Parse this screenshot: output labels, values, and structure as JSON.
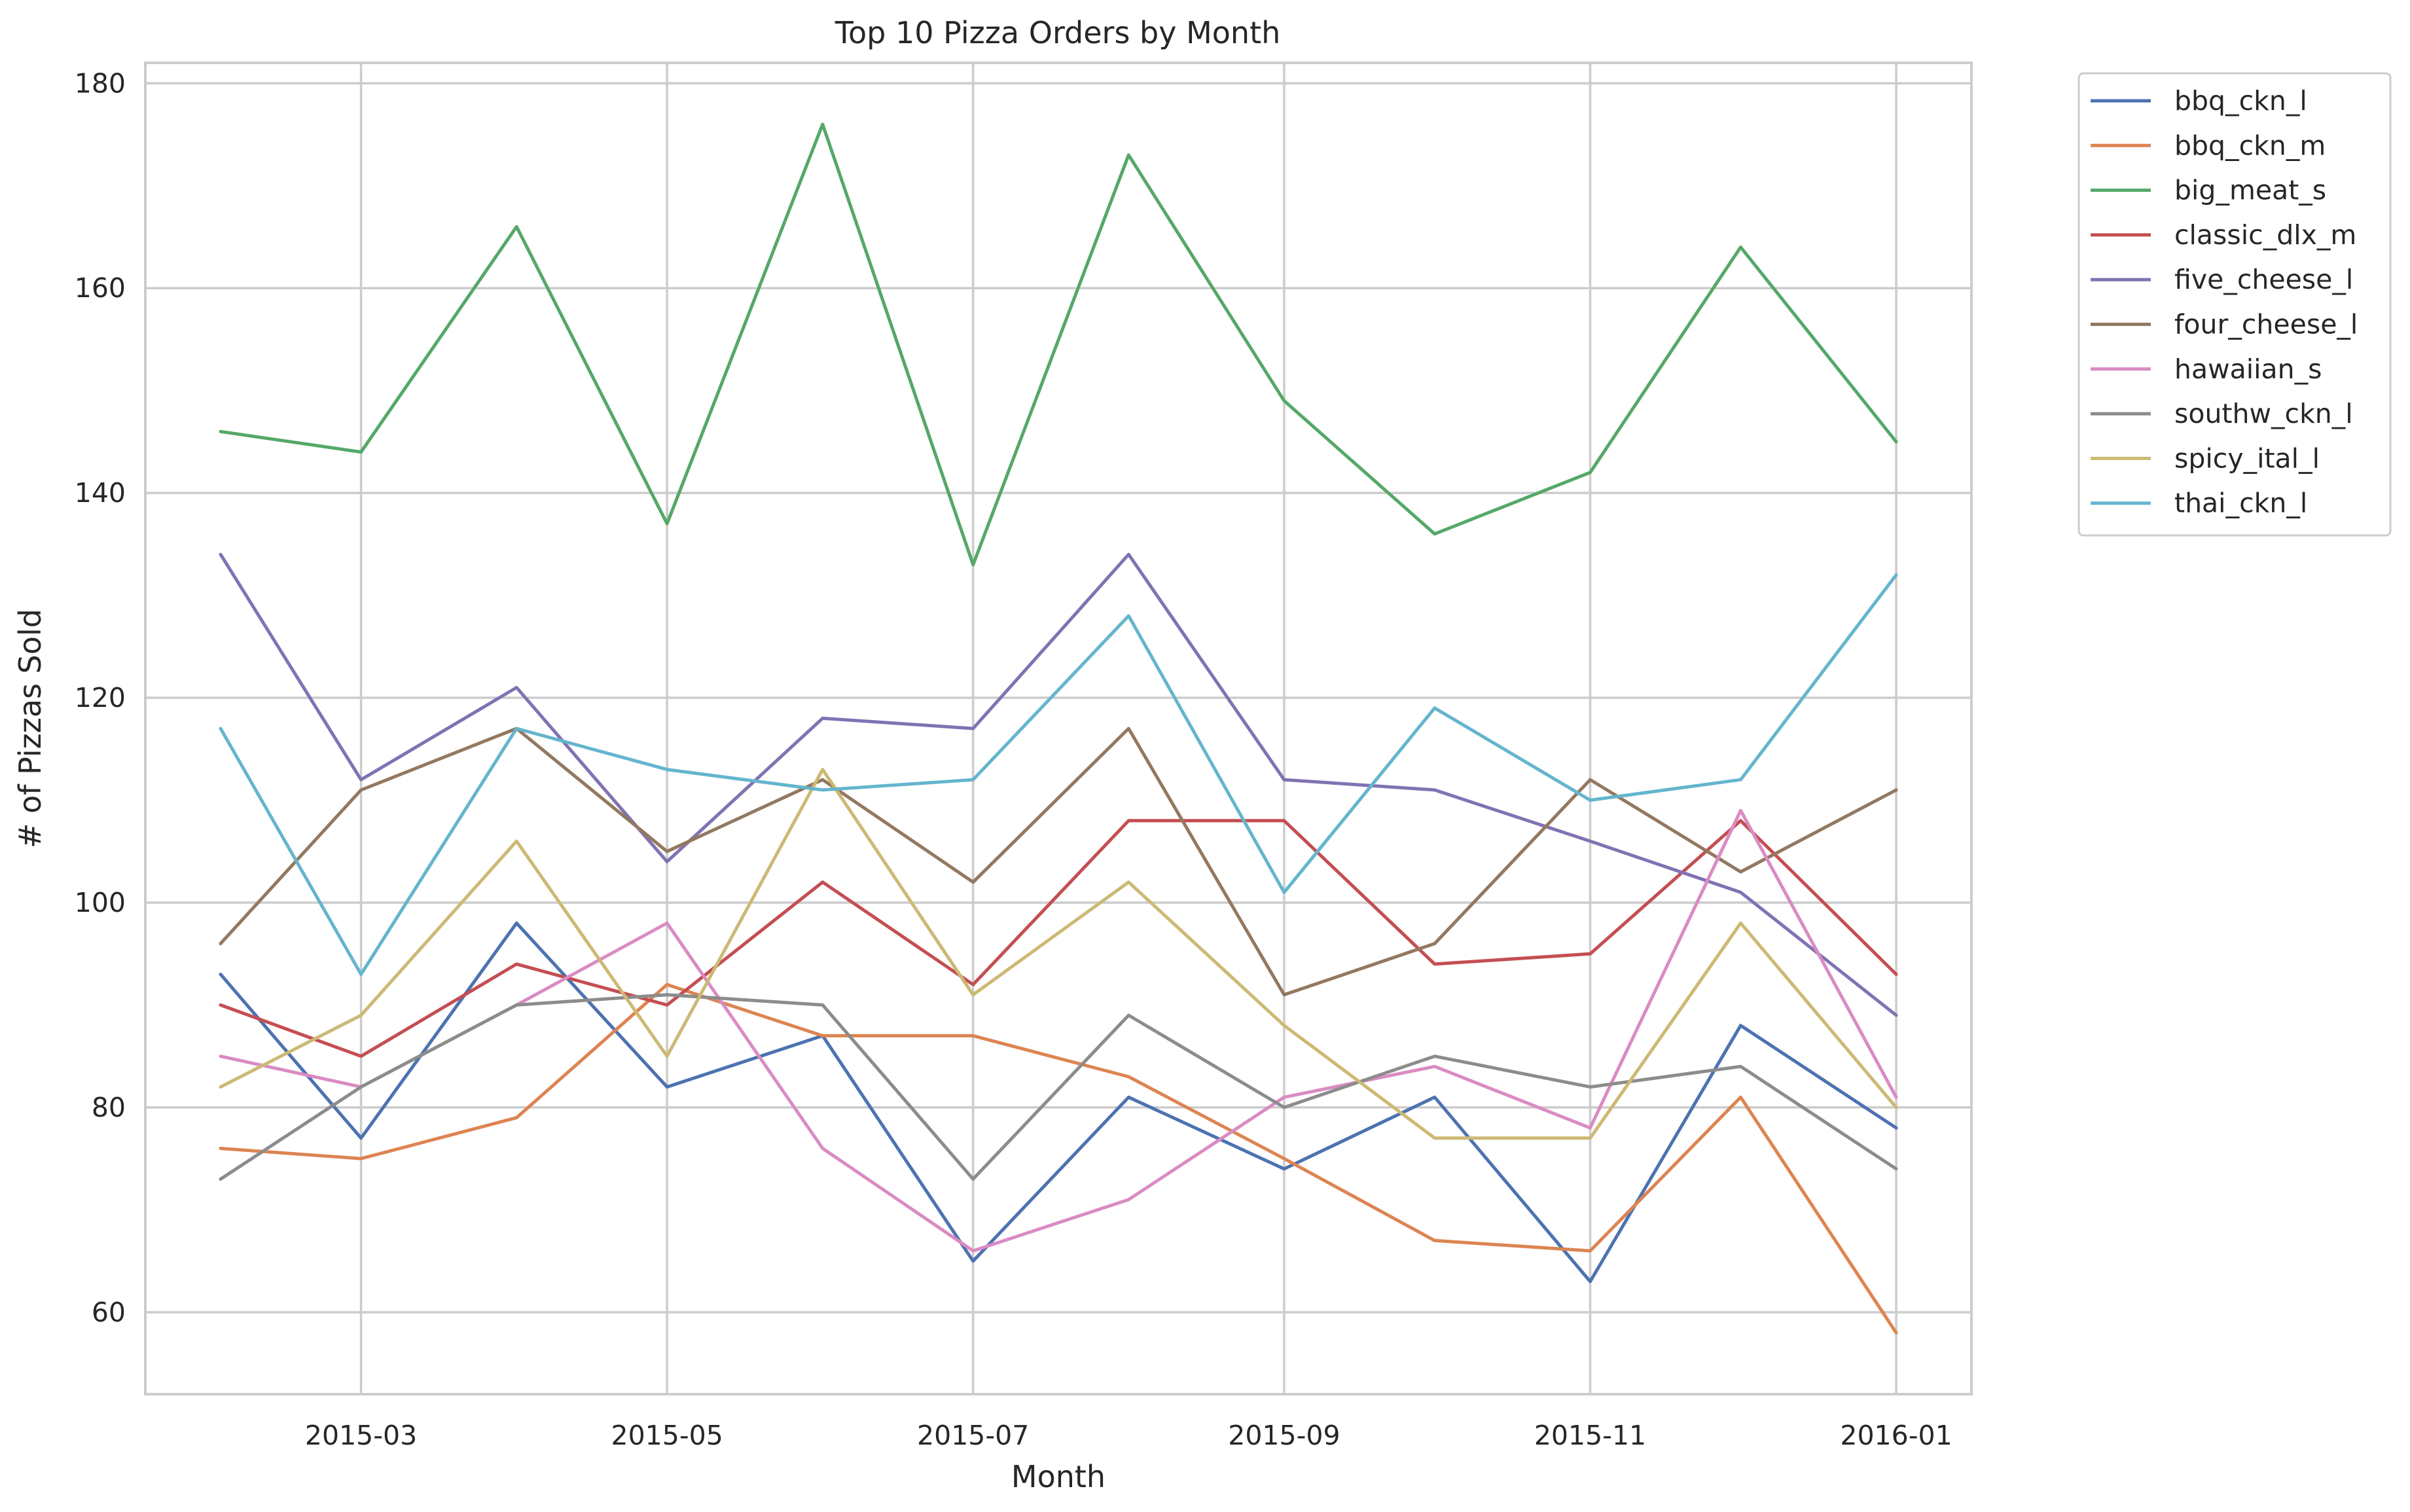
{
  "chart_data": {
    "type": "line",
    "title": "Top 10 Pizza Orders by Month",
    "xlabel": "Month",
    "ylabel": "# of Pizzas Sold",
    "x": [
      "2015-02-01",
      "2015-03-01",
      "2015-04-01",
      "2015-05-01",
      "2015-06-01",
      "2015-07-01",
      "2015-08-01",
      "2015-09-01",
      "2015-10-01",
      "2015-11-01",
      "2015-12-01",
      "2016-01-01"
    ],
    "xticks": [
      "2015-03",
      "2015-05",
      "2015-07",
      "2015-09",
      "2015-11",
      "2016-01"
    ],
    "xtick_dates": [
      "2015-03-01",
      "2015-05-01",
      "2015-07-01",
      "2015-09-01",
      "2015-11-01",
      "2016-01-01"
    ],
    "xlim": [
      "2015-01-17",
      "2016-01-16"
    ],
    "yticks": [
      60,
      80,
      100,
      120,
      140,
      160,
      180
    ],
    "ylim": [
      52,
      182
    ],
    "grid": true,
    "legend_position": "outside-top-right",
    "series": [
      {
        "name": "bbq_ckn_l",
        "color": "#4c72b0",
        "values": [
          93,
          77,
          98,
          82,
          87,
          65,
          81,
          74,
          81,
          63,
          88,
          78
        ]
      },
      {
        "name": "bbq_ckn_m",
        "color": "#dd8452",
        "values": [
          76,
          75,
          79,
          92,
          87,
          87,
          83,
          75,
          67,
          66,
          81,
          58
        ]
      },
      {
        "name": "big_meat_s",
        "color": "#55a868",
        "values": [
          146,
          144,
          166,
          137,
          176,
          133,
          173,
          149,
          136,
          142,
          164,
          145
        ]
      },
      {
        "name": "classic_dlx_m",
        "color": "#c44e52",
        "values": [
          90,
          85,
          94,
          90,
          102,
          92,
          108,
          108,
          94,
          95,
          108,
          93
        ]
      },
      {
        "name": "five_cheese_l",
        "color": "#8172b3",
        "values": [
          134,
          112,
          121,
          104,
          118,
          117,
          134,
          112,
          111,
          106,
          101,
          89
        ]
      },
      {
        "name": "four_cheese_l",
        "color": "#937860",
        "values": [
          96,
          111,
          117,
          105,
          112,
          102,
          117,
          91,
          96,
          112,
          103,
          111
        ]
      },
      {
        "name": "hawaiian_s",
        "color": "#da8bc3",
        "values": [
          85,
          82,
          90,
          98,
          76,
          66,
          71,
          81,
          84,
          78,
          109,
          81
        ]
      },
      {
        "name": "southw_ckn_l",
        "color": "#8c8c8c",
        "values": [
          73,
          82,
          90,
          91,
          90,
          73,
          89,
          80,
          85,
          82,
          84,
          74
        ]
      },
      {
        "name": "spicy_ital_l",
        "color": "#ccb974",
        "values": [
          82,
          89,
          106,
          85,
          113,
          91,
          102,
          88,
          77,
          77,
          98,
          80
        ]
      },
      {
        "name": "thai_ckn_l",
        "color": "#64b5cd",
        "values": [
          117,
          93,
          117,
          113,
          111,
          112,
          128,
          101,
          119,
          110,
          112,
          132
        ]
      }
    ]
  }
}
